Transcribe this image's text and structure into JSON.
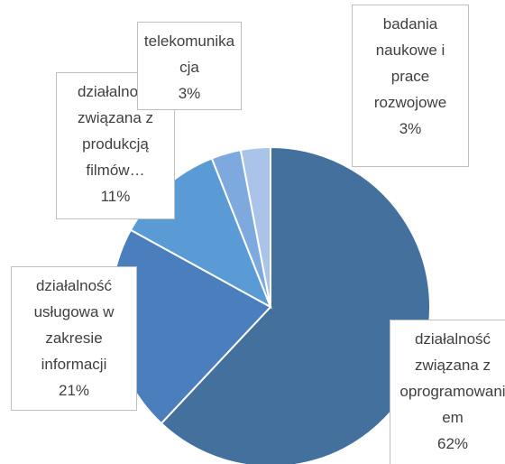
{
  "chart_data": {
    "type": "pie",
    "categories": [
      "działalność związana z oprogramowaniem",
      "działalność usługowa w zakresie informacji",
      "działalność związana z produkcją filmów…",
      "telekomunikacja",
      "badania naukowe i prace rozwojowe"
    ],
    "values": [
      62,
      21,
      11,
      3,
      3
    ],
    "value_labels": [
      "62%",
      "21%",
      "11%",
      "3%",
      "3%"
    ],
    "colors": [
      "#44709d",
      "#4a7ebd",
      "#5b9bd5",
      "#7ea9de",
      "#a9c4e8"
    ]
  }
}
